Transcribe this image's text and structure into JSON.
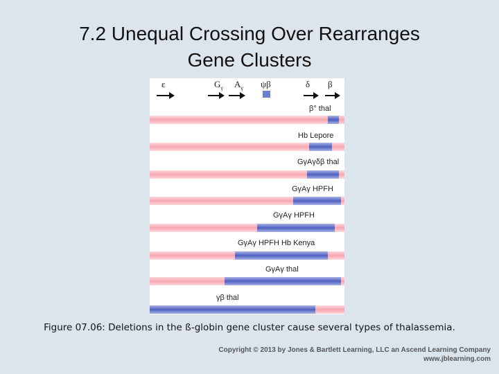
{
  "slide": {
    "title_line1": "7.2  Unequal Crossing Over Rearranges",
    "title_line2": "Gene Clusters",
    "caption": "Figure 07.06: Deletions in the ß-globin gene cluster cause several types of thalassemia.",
    "copyright_line1": "Copyright © 2013 by Jones & Bartlett Learning, LLC an Ascend Learning Company",
    "copyright_line2": "www.jblearning.com"
  },
  "figure": {
    "genes": [
      "ε",
      "G",
      "A",
      "ψβ",
      "δ",
      "β"
    ],
    "gene_subscripts": [
      "",
      "γ",
      "γ",
      "",
      "",
      ""
    ],
    "rows": [
      {
        "label": "β° thal"
      },
      {
        "label": "Hb Lepore"
      },
      {
        "label": "GγAγδβ thal"
      },
      {
        "label": "GγAγ HPFH"
      },
      {
        "label": "GγAγ HPFH"
      },
      {
        "label": "GγAγ HPFH Hb Kenya"
      },
      {
        "label": "GγAγ thal"
      },
      {
        "label": "γβ thal"
      }
    ],
    "colors": {
      "chromosome": "#f5a7b1",
      "deletion": "#4e5fbf"
    }
  }
}
